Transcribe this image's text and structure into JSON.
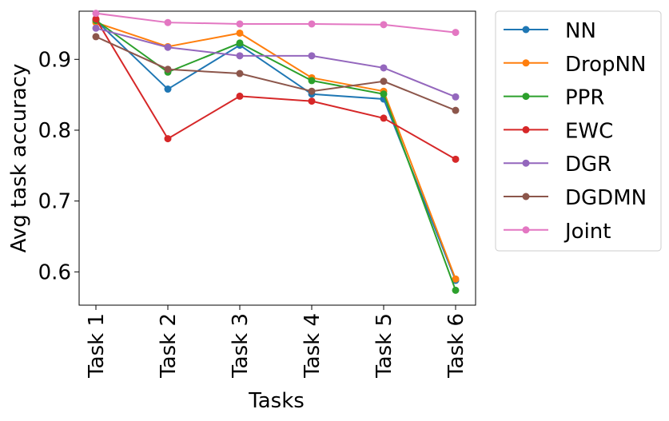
{
  "chart_data": {
    "type": "line",
    "xlabel": "Tasks",
    "ylabel": "Avg task accuracy",
    "categories": [
      "Task 1",
      "Task 2",
      "Task 3",
      "Task 4",
      "Task 5",
      "Task 6"
    ],
    "ylim": [
      0.553,
      0.968
    ],
    "yticks": [
      "0.6",
      "0.7",
      "0.8",
      "0.9"
    ],
    "ytick_values": [
      0.6,
      0.7,
      0.8,
      0.9
    ],
    "grid": false,
    "legend_placement": "outside-right",
    "series": [
      {
        "name": "NN",
        "color": "#1f77b4",
        "values": [
          0.955,
          0.858,
          0.92,
          0.851,
          0.844,
          0.588
        ]
      },
      {
        "name": "DropNN",
        "color": "#ff7f0e",
        "values": [
          0.952,
          0.918,
          0.937,
          0.874,
          0.855,
          0.59
        ]
      },
      {
        "name": "PPR",
        "color": "#2ca02c",
        "values": [
          0.955,
          0.882,
          0.923,
          0.87,
          0.851,
          0.574
        ]
      },
      {
        "name": "EWC",
        "color": "#d62728",
        "values": [
          0.957,
          0.788,
          0.848,
          0.841,
          0.817,
          0.759
        ]
      },
      {
        "name": "DGR",
        "color": "#9467bd",
        "values": [
          0.944,
          0.917,
          0.905,
          0.905,
          0.888,
          0.847
        ]
      },
      {
        "name": "DGDMN",
        "color": "#8c564b",
        "values": [
          0.932,
          0.886,
          0.88,
          0.855,
          0.869,
          0.828
        ]
      },
      {
        "name": "Joint",
        "color": "#e377c2",
        "values": [
          0.965,
          0.952,
          0.95,
          0.95,
          0.949,
          0.938
        ]
      }
    ]
  }
}
